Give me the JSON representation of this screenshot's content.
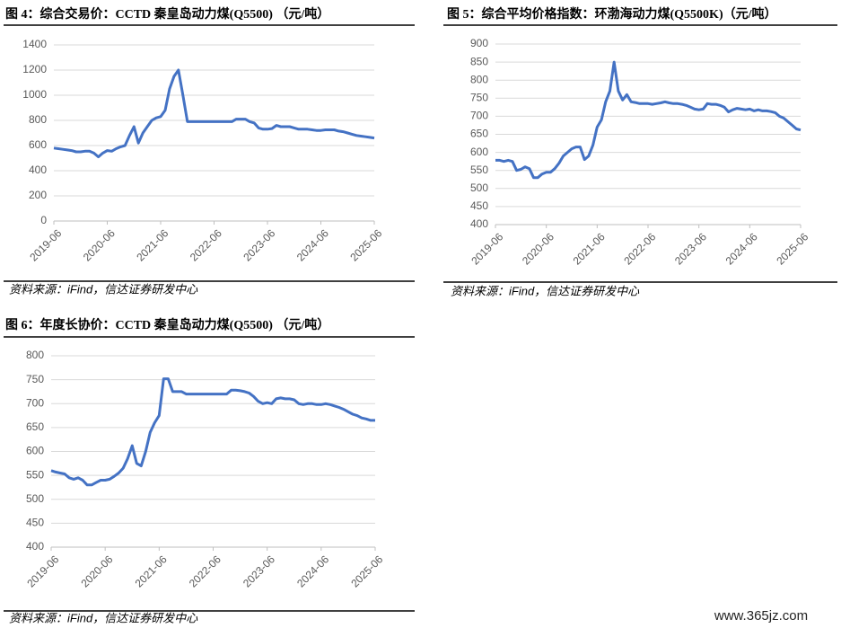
{
  "chart_data": [
    {
      "type": "line",
      "title": "图 4：综合交易价：CCTD 秦皇岛动力煤(Q5500) （元/吨）",
      "source": "资料来源：iFind，信达证券研发中心",
      "categories": [
        "2019-06",
        null,
        null,
        null,
        null,
        null,
        null,
        null,
        null,
        null,
        null,
        null,
        "2020-06",
        null,
        null,
        null,
        null,
        null,
        null,
        null,
        null,
        null,
        null,
        null,
        "2021-06",
        null,
        null,
        null,
        null,
        null,
        null,
        null,
        null,
        null,
        null,
        null,
        "2022-06",
        null,
        null,
        null,
        null,
        null,
        null,
        null,
        null,
        null,
        null,
        null,
        "2023-06",
        null,
        null,
        null,
        null,
        null,
        null,
        null,
        null,
        null,
        null,
        null,
        "2024-06",
        null,
        null,
        null,
        null,
        null,
        null,
        null,
        null,
        null,
        null,
        null,
        "2025-06"
      ],
      "values": [
        580,
        575,
        570,
        565,
        560,
        550,
        550,
        555,
        555,
        540,
        510,
        540,
        560,
        555,
        575,
        590,
        600,
        680,
        750,
        620,
        700,
        750,
        800,
        820,
        830,
        880,
        1050,
        1150,
        1200,
        1000,
        790,
        790,
        790,
        790,
        790,
        790,
        790,
        790,
        790,
        790,
        790,
        810,
        810,
        810,
        790,
        780,
        740,
        730,
        730,
        735,
        760,
        750,
        750,
        750,
        740,
        730,
        730,
        730,
        725,
        720,
        720,
        725,
        725,
        725,
        715,
        710,
        700,
        690,
        680,
        675,
        670,
        665,
        660
      ],
      "color": "#4472c4",
      "ylim": [
        0,
        1400
      ],
      "yticks": [
        0,
        200,
        400,
        600,
        800,
        1000,
        1200,
        1400
      ],
      "grid": true
    },
    {
      "type": "line",
      "title": "图 5：综合平均价格指数：环渤海动力煤(Q5500K)（元/吨）",
      "source": "资料来源：iFind，信达证券研发中心",
      "categories": [
        "2019-06",
        null,
        null,
        null,
        null,
        null,
        null,
        null,
        null,
        null,
        null,
        null,
        "2020-06",
        null,
        null,
        null,
        null,
        null,
        null,
        null,
        null,
        null,
        null,
        null,
        "2021-06",
        null,
        null,
        null,
        null,
        null,
        null,
        null,
        null,
        null,
        null,
        null,
        "2022-06",
        null,
        null,
        null,
        null,
        null,
        null,
        null,
        null,
        null,
        null,
        null,
        "2023-06",
        null,
        null,
        null,
        null,
        null,
        null,
        null,
        null,
        null,
        null,
        null,
        "2024-06",
        null,
        null,
        null,
        null,
        null,
        null,
        null,
        null,
        null,
        null,
        null,
        "2025-06"
      ],
      "values": [
        578,
        578,
        575,
        578,
        575,
        550,
        553,
        560,
        555,
        530,
        530,
        540,
        545,
        545,
        555,
        570,
        590,
        600,
        610,
        615,
        615,
        580,
        590,
        620,
        670,
        690,
        740,
        770,
        850,
        770,
        745,
        760,
        740,
        738,
        735,
        735,
        735,
        733,
        735,
        737,
        740,
        737,
        735,
        735,
        733,
        730,
        725,
        720,
        718,
        720,
        735,
        733,
        733,
        730,
        725,
        712,
        718,
        722,
        720,
        718,
        720,
        715,
        718,
        715,
        715,
        713,
        710,
        700,
        695,
        685,
        675,
        665,
        662
      ],
      "color": "#4472c4",
      "ylim": [
        400,
        900
      ],
      "yticks": [
        400,
        450,
        500,
        550,
        600,
        650,
        700,
        750,
        800,
        850,
        900
      ],
      "grid": true
    },
    {
      "type": "line",
      "title": "图 6：年度长协价：CCTD 秦皇岛动力煤(Q5500) （元/吨）",
      "source": "资料来源：iFind，信达证券研发中心",
      "categories": [
        "2019-06",
        null,
        null,
        null,
        null,
        null,
        null,
        null,
        null,
        null,
        null,
        null,
        "2020-06",
        null,
        null,
        null,
        null,
        null,
        null,
        null,
        null,
        null,
        null,
        null,
        "2021-06",
        null,
        null,
        null,
        null,
        null,
        null,
        null,
        null,
        null,
        null,
        null,
        "2022-06",
        null,
        null,
        null,
        null,
        null,
        null,
        null,
        null,
        null,
        null,
        null,
        "2023-06",
        null,
        null,
        null,
        null,
        null,
        null,
        null,
        null,
        null,
        null,
        null,
        "2024-06",
        null,
        null,
        null,
        null,
        null,
        null,
        null,
        null,
        null,
        null,
        null,
        "2025-06"
      ],
      "values": [
        560,
        557,
        555,
        553,
        545,
        542,
        545,
        540,
        530,
        530,
        535,
        540,
        540,
        542,
        548,
        555,
        565,
        585,
        612,
        575,
        570,
        600,
        640,
        660,
        675,
        752,
        752,
        725,
        725,
        725,
        720,
        720,
        720,
        720,
        720,
        720,
        720,
        720,
        720,
        720,
        728,
        728,
        727,
        725,
        722,
        715,
        705,
        700,
        702,
        700,
        710,
        712,
        710,
        710,
        708,
        700,
        698,
        700,
        700,
        698,
        698,
        700,
        698,
        695,
        692,
        688,
        683,
        678,
        675,
        670,
        668,
        665,
        665
      ],
      "color": "#4472c4",
      "ylim": [
        400,
        800
      ],
      "yticks": [
        400,
        450,
        500,
        550,
        600,
        650,
        700,
        750,
        800
      ],
      "grid": true
    }
  ],
  "watermark": "www.365jz.com"
}
